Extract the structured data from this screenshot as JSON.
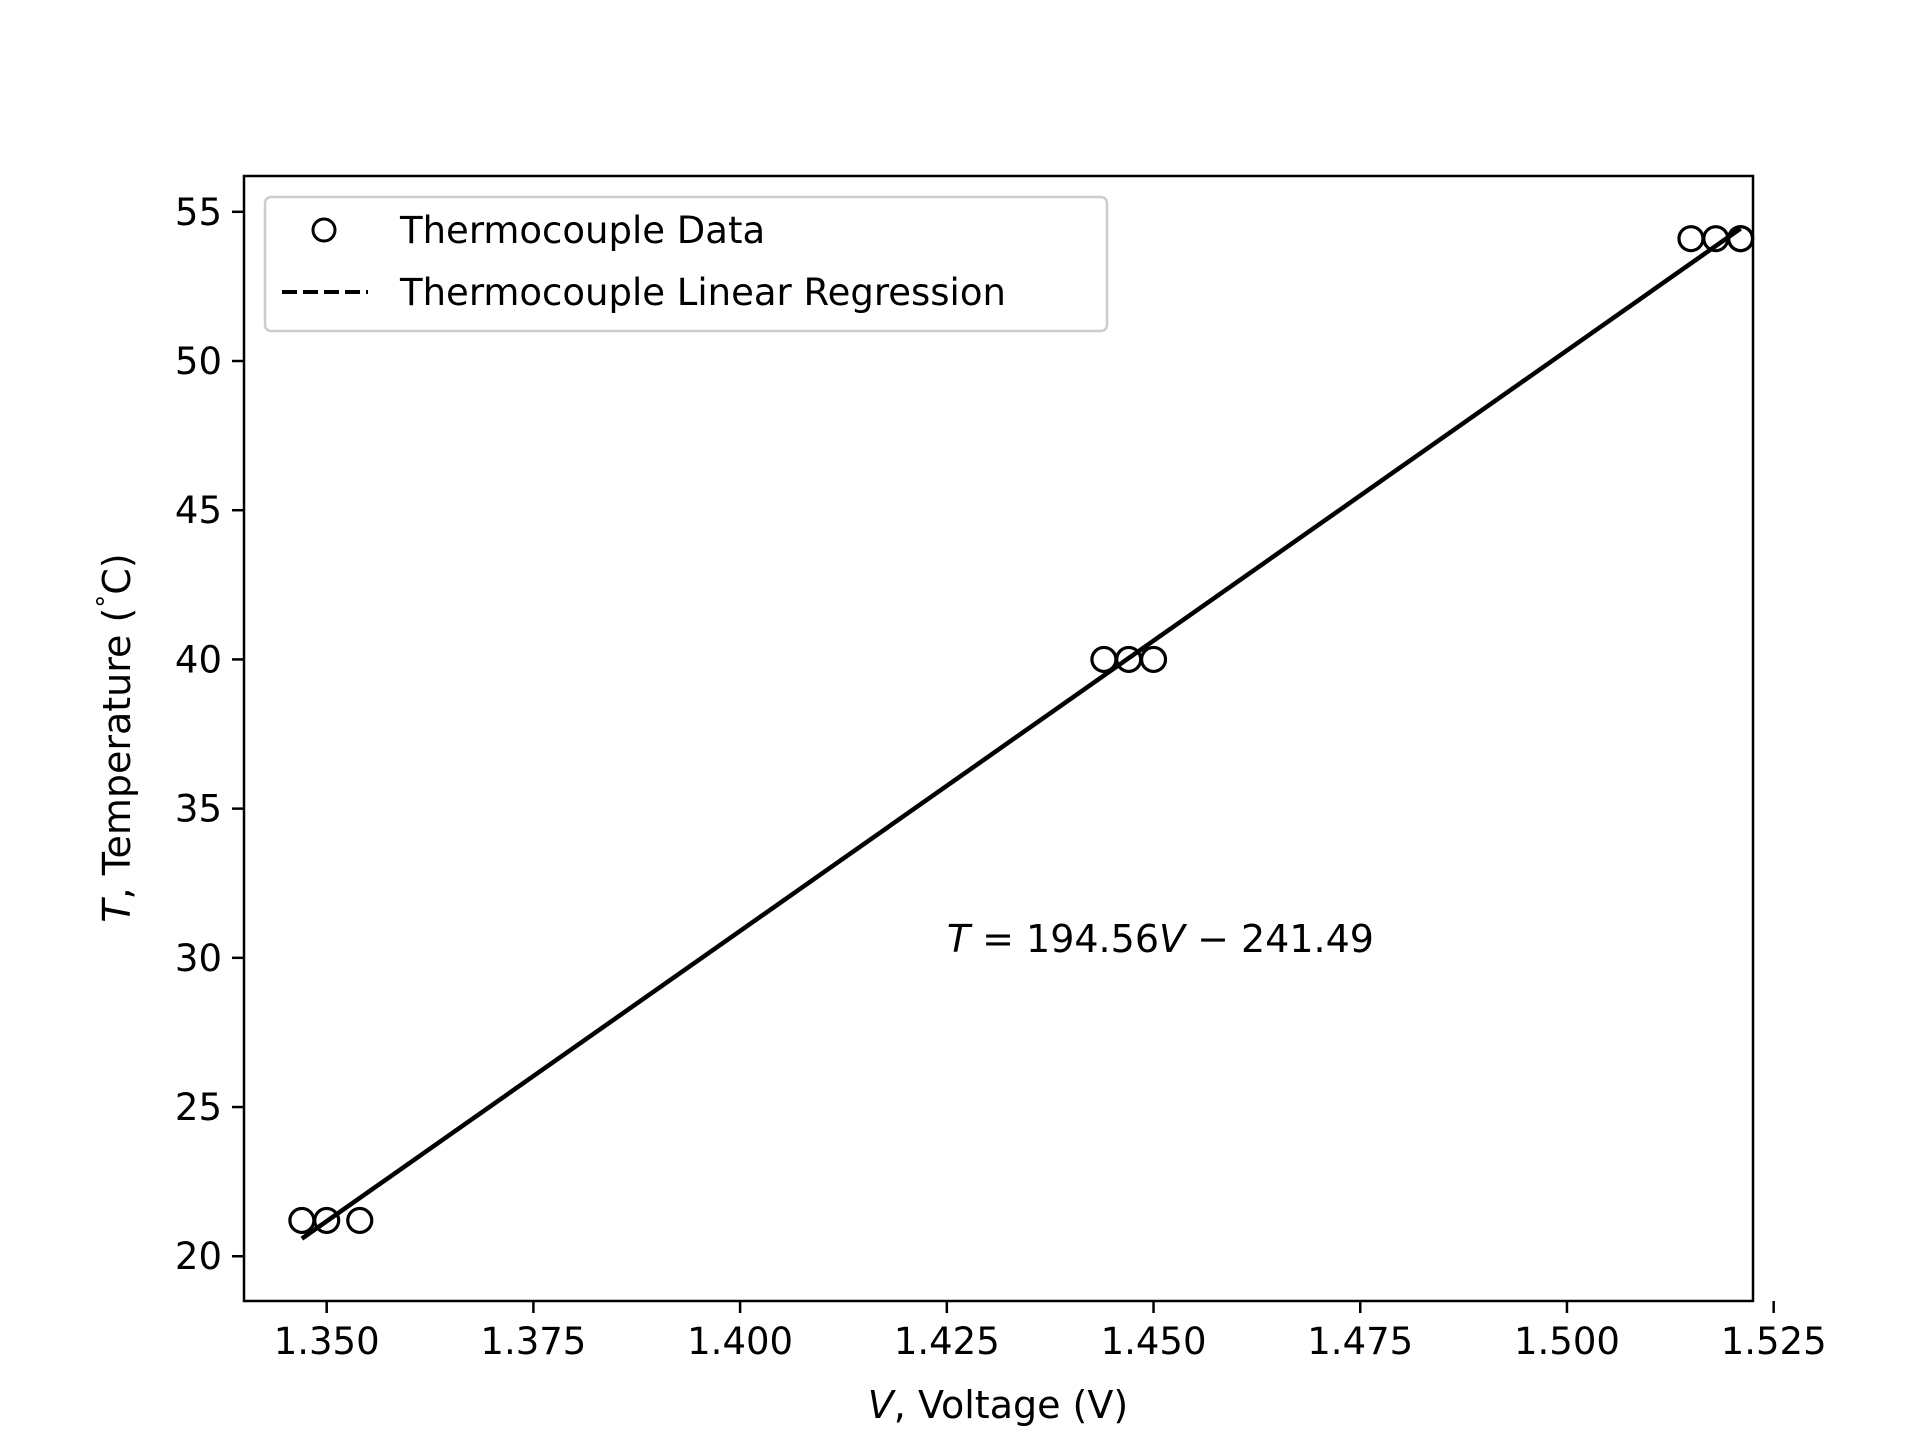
{
  "chart_data": {
    "type": "scatter",
    "title": "",
    "xlabel": {
      "var": "V",
      "rest": ", Voltage (V)"
    },
    "ylabel": {
      "var": "T",
      "rest": ", Temperature (",
      "deg": "°",
      "unit": "C)"
    },
    "xlim": [
      1.34,
      1.5225
    ],
    "ylim": [
      18.5,
      56.2
    ],
    "x_ticks": [
      1.35,
      1.375,
      1.4,
      1.425,
      1.45,
      1.475,
      1.5,
      1.525
    ],
    "x_tick_labels": [
      "1.350",
      "1.375",
      "1.400",
      "1.425",
      "1.450",
      "1.475",
      "1.500",
      "1.525"
    ],
    "y_ticks": [
      20,
      25,
      30,
      35,
      40,
      45,
      50,
      55
    ],
    "y_tick_labels": [
      "20",
      "25",
      "30",
      "35",
      "40",
      "45",
      "50",
      "55"
    ],
    "grid": false,
    "legend_position": "top-left",
    "series": [
      {
        "name": "Thermocouple Data",
        "kind": "scatter",
        "marker": "circle-open",
        "color": "#000000",
        "x": [
          1.347,
          1.35,
          1.354,
          1.444,
          1.447,
          1.45,
          1.515,
          1.518,
          1.521,
          1.521
        ],
        "y": [
          21.2,
          21.2,
          21.2,
          40.0,
          40.0,
          40.0,
          54.1,
          54.1,
          54.1,
          54.1
        ]
      },
      {
        "name": "Thermocouple Linear Regression",
        "kind": "line",
        "style": "dashed",
        "color": "#000000",
        "slope": 194.56,
        "intercept": -241.49,
        "x": [
          1.347,
          1.521
        ],
        "y": [
          20.59,
          54.44
        ]
      }
    ],
    "annotation": {
      "parts": [
        {
          "text": "T",
          "italic": true
        },
        {
          "text": " = 194.56",
          "italic": false
        },
        {
          "text": "V",
          "italic": true
        },
        {
          "text": " − 241.49",
          "italic": false
        }
      ],
      "x": 1.425,
      "y": 30.2
    }
  }
}
